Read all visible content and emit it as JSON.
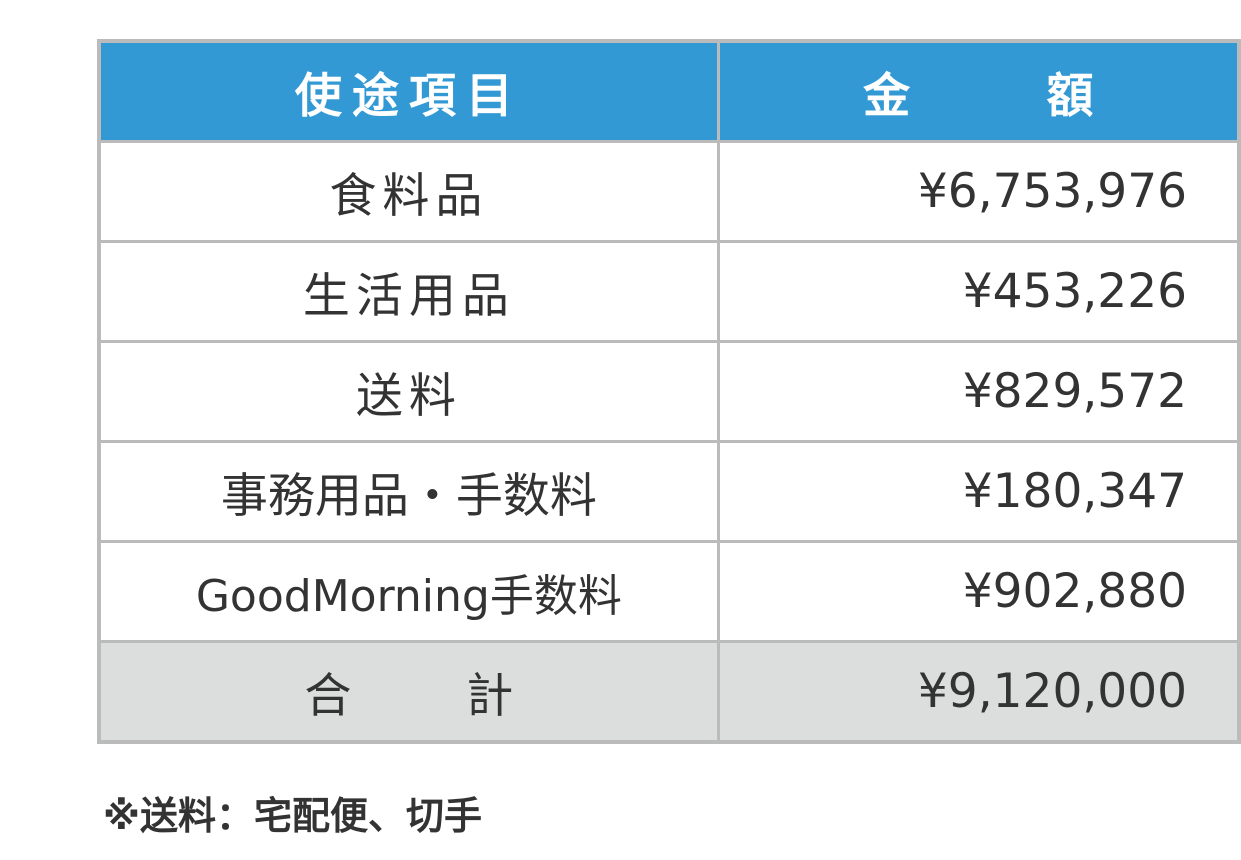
{
  "table": {
    "headers": [
      "使途項目",
      "金 額"
    ],
    "rows": [
      {
        "item": "食料品",
        "amount": "¥6,753,976"
      },
      {
        "item": "生活用品",
        "amount": "¥453,226"
      },
      {
        "item": "送料",
        "amount": "¥829,572"
      },
      {
        "item": "事務用品・手数料",
        "amount": "¥180,347"
      },
      {
        "item": "GoodMorning手数料",
        "amount": "¥902,880"
      }
    ],
    "total": {
      "label": "合 計",
      "amount": "¥9,120,000"
    }
  },
  "note": "※送料：宅配便、切手",
  "colors": {
    "header": "#3399d5",
    "total_row": "#dcdddd",
    "border": "#bbbbbb"
  }
}
